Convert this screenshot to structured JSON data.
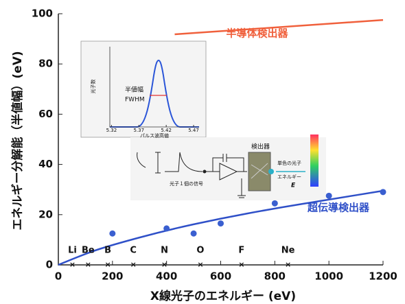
{
  "chart_data": [
    {
      "type": "scatter",
      "x_label": "X線光子のエネルギー (eV)",
      "y_label": "エネルギー分解能（半値幅）(eV)",
      "xlim": [
        0,
        1200
      ],
      "xticks": [
        0,
        200,
        400,
        600,
        800,
        1000,
        1200
      ],
      "ylim": [
        0,
        100
      ],
      "yticks": [
        0,
        20,
        40,
        60,
        80,
        100
      ],
      "series": [
        {
          "name": "半導体検出器",
          "color": "#f0603c",
          "x": [
            430,
            1200
          ],
          "values": [
            91.8,
            97.5
          ]
        },
        {
          "name": "超伝導検出器",
          "color": "#2f50c8",
          "x": [
            0,
            100,
            200,
            400,
            600,
            800,
            1000,
            1200
          ],
          "values": [
            0,
            4.5,
            8,
            13.8,
            18.5,
            22.5,
            26,
            29.5
          ]
        }
      ],
      "points": {
        "color": "#3a5fd0",
        "x": [
          200,
          400,
          500,
          600,
          800,
          1000,
          1200
        ],
        "values": [
          12.5,
          14.5,
          12.5,
          16.5,
          24.5,
          27.5,
          29
        ]
      },
      "elements": {
        "labels": [
          "Li",
          "Be",
          "B",
          "C",
          "N",
          "O",
          "F",
          "Ne"
        ],
        "x": [
          52,
          110,
          183,
          277,
          392,
          525,
          677,
          849
        ]
      }
    },
    {
      "type": "line",
      "x_label": "パルス波高値",
      "y_label": "光子数",
      "xlim": [
        5.317,
        5.48
      ],
      "xticks": [
        5.32,
        5.37,
        5.42,
        5.47
      ],
      "annotation": [
        "半値幅",
        "FWHM"
      ]
    }
  ],
  "diagram": {
    "signal": "光子１個の信号",
    "detector": "検出器",
    "photon": "単色の光子",
    "energy": "エネルギー",
    "symbol": "E"
  }
}
